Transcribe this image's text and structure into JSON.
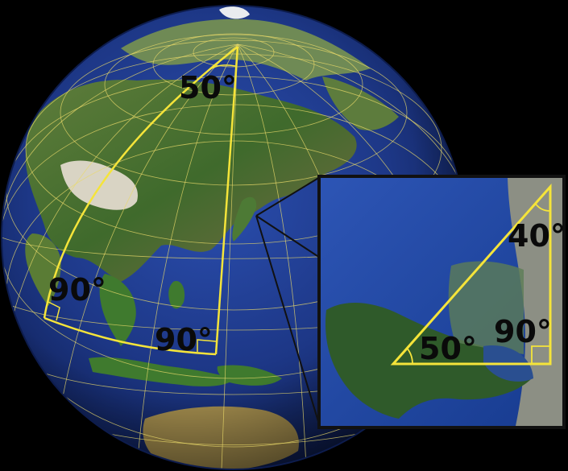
{
  "globe": {
    "angles": {
      "apex": "50°",
      "left_corner": "90°",
      "right_corner": "90°"
    }
  },
  "inset": {
    "angles": {
      "top": "40°",
      "left": "50°",
      "right": "90°"
    }
  },
  "colors": {
    "background": "#000000",
    "ocean": "#1e3a8a",
    "triangle_line": "#f5e43a",
    "graticule": "#e9d96a",
    "label": "#0a0a0a",
    "inset_frame": "#111111"
  }
}
